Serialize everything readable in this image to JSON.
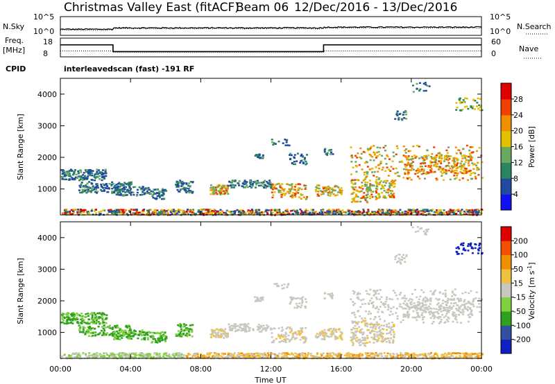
{
  "header": {
    "station": "Christmas Valley East (fitACF)",
    "beam": "Beam 06",
    "date_range": "12/Dec/2016 - 13/Dec/2016"
  },
  "chart_data": [
    {
      "type": "line",
      "panel": "noise",
      "left_label": "N.Sky",
      "right_label": "N.Search",
      "left_ticks": [
        "10^5",
        "10^0"
      ],
      "right_ticks": [
        "10^5",
        "10^0"
      ],
      "series": [
        {
          "name": "N.Sky",
          "style": "solid"
        },
        {
          "name": "N.Search",
          "style": "dotted"
        }
      ]
    },
    {
      "type": "line",
      "panel": "frequency",
      "left_label_1": "Freq.",
      "left_label_2": "[MHz]",
      "right_label": "Nave",
      "left_ticks": [
        18,
        8
      ],
      "right_ticks": [
        60,
        0
      ],
      "ylim_freq": [
        8,
        18
      ],
      "ylim_nave": [
        0,
        60
      ],
      "x_hours": [
        0,
        3,
        3,
        15,
        15,
        24
      ],
      "freq_mhz": [
        14.4,
        14.4,
        10.8,
        10.8,
        14.4,
        14.4
      ],
      "nave_x_hours": [
        0,
        3,
        3,
        15,
        15,
        24
      ],
      "nave": [
        19,
        19,
        15,
        15,
        19,
        19
      ]
    },
    {
      "type": "text",
      "panel": "cpid",
      "label": "CPID",
      "value": "interleavedscan (fast) -191 RF"
    },
    {
      "type": "heatmap",
      "panel": "power",
      "ylabel": "Slant Range [km]",
      "yticks": [
        1000,
        2000,
        3000,
        4000
      ],
      "ylim": [
        180,
        4500
      ],
      "xlim_hours": [
        0,
        24
      ],
      "colorbar": {
        "label": "Power [dB]",
        "ticks": [
          4,
          8,
          12,
          16,
          20,
          24,
          28
        ],
        "colors": [
          "#1010f0",
          "#204aa0",
          "#2a8460",
          "#6aaa60",
          "#e0c000",
          "#f09000",
          "#f04000",
          "#e00000"
        ]
      }
    },
    {
      "type": "heatmap",
      "panel": "velocity",
      "ylabel": "Slant Range [km]",
      "yticks": [
        1000,
        2000,
        3000,
        4000
      ],
      "ylim": [
        180,
        4500
      ],
      "xlim_hours": [
        0,
        24
      ],
      "xlabel": "Time UT",
      "xticks": [
        "00:00",
        "04:00",
        "08:00",
        "12:00",
        "16:00",
        "20:00",
        "00:00"
      ],
      "colorbar": {
        "label_main": "Velocity [m s",
        "label_sup": "-1",
        "label_end": "]",
        "ticks": [
          "200",
          "100",
          "50",
          "15",
          "-15",
          "-50",
          "-100",
          "-200"
        ],
        "colors": [
          "#1020c0",
          "#3050a0",
          "#30a020",
          "#80d040",
          "#c8c8c0",
          "#f0c040",
          "#f09000",
          "#f05000",
          "#e00000"
        ]
      }
    }
  ]
}
